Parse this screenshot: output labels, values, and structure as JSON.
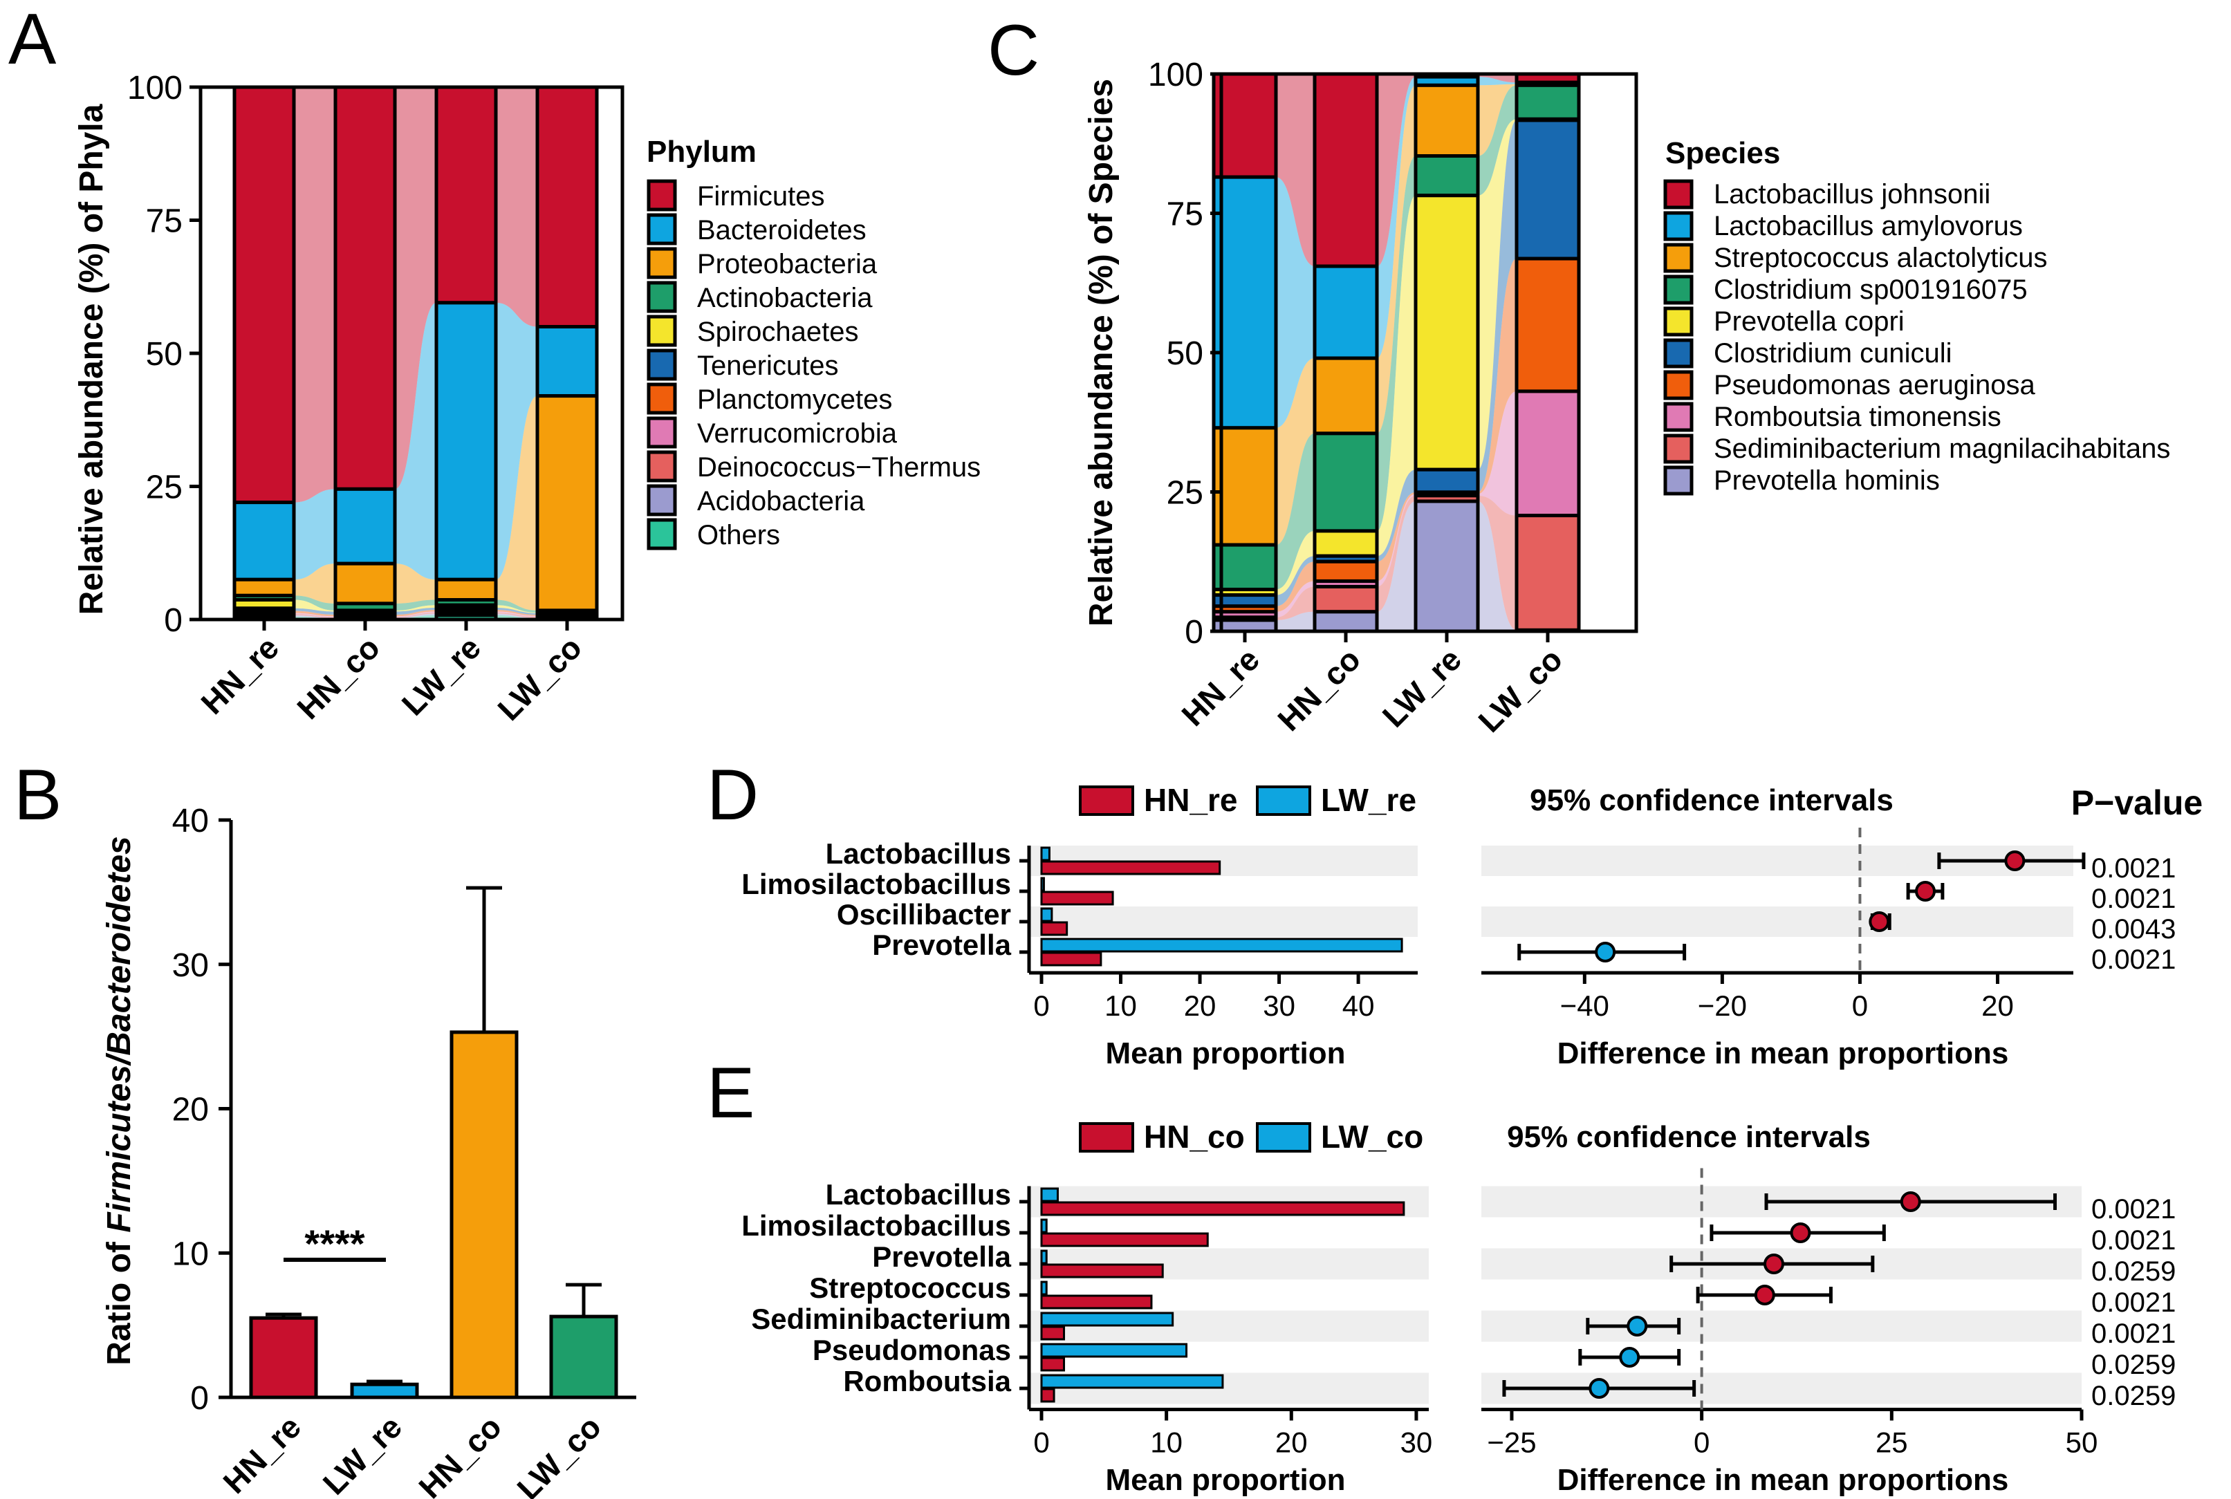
{
  "colors": {
    "Firmicutes": "#C8102E",
    "Bacteroidetes": "#0EA5E0",
    "Proteobacteria": "#F59E0B",
    "Actinobacteria": "#1E9E6A",
    "Spirochaetes": "#F4E52C",
    "Tenericutes": "#1869B0",
    "Planctomycetes": "#F05E0C",
    "Verrucomicrobia": "#E07AB4",
    "Deinococcus-Thermus": "#E5605E",
    "Acidobacteria": "#9B9BCF",
    "Others": "#2BC49A",
    "Lactobacillus johnsonii": "#C8102E",
    "Lactobacillus amylovorus": "#0EA5E0",
    "Streptococcus alactolyticus": "#F59E0B",
    "Clostridium sp001916075": "#1E9E6A",
    "Prevotella copri": "#F4E52C",
    "Clostridium cuniculi": "#1869B0",
    "Pseudomonas aeruginosa": "#F05E0C",
    "Romboutsia timonensis": "#E07AB4",
    "Sediminibacterium magnilacihabitans": "#E5605E",
    "Prevotella hominis": "#9B9BCF",
    "hn": "#C8102E",
    "lw": "#0EA5E0",
    "orange": "#F59E0B",
    "green": "#1E9E6A",
    "band": "#EEEEEE"
  },
  "panels": {
    "A": {
      "letter": "A",
      "ylabel": "Relative abundance (%) of  Phyla",
      "legend_title": "Phylum"
    },
    "B": {
      "letter": "B",
      "ylabel_prefix": "Ratio of ",
      "ylabel_italic": "Firmicutes/Bacteroidetes",
      "significance": "****"
    },
    "C": {
      "letter": "C",
      "ylabel": "Relative abundance (%) of Species",
      "legend_title": "Species"
    },
    "D": {
      "letter": "D",
      "ci_title": "95% confidence intervals",
      "pvalue_title": "P−value",
      "xlabel_left": "Mean proportion",
      "xlabel_right": "Difference in mean proportions"
    },
    "E": {
      "letter": "E",
      "ci_title": "95% confidence intervals",
      "xlabel_left": "Mean proportion",
      "xlabel_right": "Difference in mean proportions"
    }
  },
  "chart_data": [
    {
      "id": "A",
      "type": "bar",
      "stacked": true,
      "title": "",
      "xlabel": "",
      "ylabel": "Relative abundance (%) of  Phyla",
      "ylim": [
        0,
        100
      ],
      "yticks": [
        0,
        25,
        50,
        75,
        100
      ],
      "categories": [
        "HN_re",
        "HN_co",
        "LW_re",
        "LW_co"
      ],
      "legend_title": "Phylum",
      "legend": "right",
      "series": [
        {
          "name": "Firmicutes",
          "values": [
            78,
            75.5,
            40.5,
            45
          ]
        },
        {
          "name": "Bacteroidetes",
          "values": [
            14.5,
            14,
            52,
            13
          ]
        },
        {
          "name": "Proteobacteria",
          "values": [
            3,
            7.5,
            3.8,
            40.3
          ]
        },
        {
          "name": "Actinobacteria",
          "values": [
            0.8,
            1.3,
            1,
            0.4
          ]
        },
        {
          "name": "Spirochaetes",
          "values": [
            1.6,
            0.2,
            0.5,
            0.1
          ]
        },
        {
          "name": "Tenericutes",
          "values": [
            0.5,
            0.6,
            0.4,
            0.3
          ]
        },
        {
          "name": "Planctomycetes",
          "values": [
            0.4,
            0.3,
            0.3,
            0.2
          ]
        },
        {
          "name": "Verrucomicrobia",
          "values": [
            0.2,
            0.2,
            0.2,
            0.2
          ]
        },
        {
          "name": "Deinococcus−Thermus",
          "values": [
            0.2,
            0.1,
            0.2,
            0.2
          ]
        },
        {
          "name": "Acidobacteria",
          "values": [
            0.3,
            0.1,
            0.3,
            0.1
          ]
        },
        {
          "name": "Others",
          "values": [
            0.5,
            0.2,
            0.8,
            0.2
          ]
        }
      ]
    },
    {
      "id": "B",
      "type": "bar",
      "title": "",
      "xlabel": "",
      "ylabel": "Ratio of Firmicutes/Bacteroidetes",
      "ylim": [
        0,
        40
      ],
      "yticks": [
        0,
        10,
        20,
        30,
        40
      ],
      "categories": [
        "HN_re",
        "LW_re",
        "HN_co",
        "LW_co"
      ],
      "values": [
        5.5,
        0.9,
        25.3,
        5.6
      ],
      "errors": [
        0.25,
        0.2,
        10,
        2.2
      ],
      "annotation": {
        "text": "****",
        "between": [
          "HN_re",
          "LW_re"
        ]
      }
    },
    {
      "id": "C",
      "type": "bar",
      "stacked": true,
      "title": "",
      "xlabel": "",
      "ylabel": "Relative abundance (%) of Species",
      "ylim": [
        0,
        100
      ],
      "yticks": [
        0,
        25,
        50,
        75,
        100
      ],
      "categories": [
        "HN_re",
        "HN_co",
        "LW_re",
        "LW_co"
      ],
      "legend_title": "Species",
      "legend": "right",
      "series": [
        {
          "name": "Lactobacillus johnsonii",
          "values": [
            18.5,
            34.5,
            0.5,
            1.5
          ]
        },
        {
          "name": "Lactobacillus amylovorus",
          "values": [
            45,
            16.5,
            1.5,
            0.3
          ]
        },
        {
          "name": "Streptococcus alactolyticus",
          "values": [
            21,
            13.5,
            12.5,
            0.2
          ]
        },
        {
          "name": "Clostridium sp001916075",
          "values": [
            8,
            17.5,
            7,
            6
          ]
        },
        {
          "name": "Prevotella copri",
          "values": [
            1,
            4.5,
            48.5,
            0.2
          ]
        },
        {
          "name": "Clostridium cuniculi",
          "values": [
            2,
            1,
            4,
            24.5
          ]
        },
        {
          "name": "Pseudomonas aeruginosa",
          "values": [
            1,
            3.5,
            0.3,
            23.5
          ]
        },
        {
          "name": "Romboutsia timonensis",
          "values": [
            1,
            1,
            0.3,
            22
          ]
        },
        {
          "name": "Sediminibacterium magnilacihabitans",
          "values": [
            0.5,
            4.5,
            1,
            20.3
          ]
        },
        {
          "name": "Prevotella hominis",
          "values": [
            2,
            3.5,
            23,
            0.2
          ]
        }
      ]
    },
    {
      "id": "D",
      "type": "bar",
      "title": "95% confidence intervals",
      "legend": "top",
      "groups": [
        "HN_re",
        "LW_re"
      ],
      "features": [
        "Lactobacillus",
        "Limosilactobacillus",
        "Oscillibacter",
        "Prevotella"
      ],
      "mean_proportion": {
        "HN_re": [
          22.5,
          9,
          3.2,
          7.5
        ],
        "LW_re": [
          1,
          0.3,
          1.3,
          45.5
        ]
      },
      "left_xlim": [
        0,
        47.5
      ],
      "left_xticks": [
        0,
        10,
        20,
        30,
        40
      ],
      "left_xlabel": "Mean proportion",
      "difference": [
        22.5,
        9.5,
        2.8,
        -37
      ],
      "ci_low": [
        11.5,
        7,
        1.8,
        -49.5
      ],
      "ci_high": [
        32.5,
        12,
        4.3,
        -25.5
      ],
      "right_xlim": [
        -55,
        31
      ],
      "right_xticks": [
        -40,
        -20,
        0,
        20
      ],
      "right_xlabel": "Difference in mean proportions",
      "p_values": [
        "0.0021",
        "0.0021",
        "0.0043",
        "0.0021"
      ]
    },
    {
      "id": "E",
      "type": "bar",
      "title": "95% confidence intervals",
      "legend": "top",
      "groups": [
        "HN_co",
        "LW_co"
      ],
      "features": [
        "Lactobacillus",
        "Limosilactobacillus",
        "Prevotella",
        "Streptococcus",
        "Sediminibacterium",
        "Pseudomonas",
        "Romboutsia"
      ],
      "mean_proportion": {
        "HN_co": [
          29,
          13.3,
          9.7,
          8.8,
          1.8,
          1.8,
          1
        ],
        "LW_co": [
          1.3,
          0.4,
          0.4,
          0.4,
          10.5,
          11.6,
          14.5
        ]
      },
      "left_xlim": [
        0,
        31
      ],
      "left_xticks": [
        0,
        10,
        20,
        30
      ],
      "left_xlabel": "Mean proportion",
      "difference": [
        27.5,
        13,
        9.5,
        8.3,
        -8.5,
        -9.5,
        -13.5
      ],
      "ci_low": [
        8.5,
        1.3,
        -4,
        -0.5,
        -15,
        -16,
        -26
      ],
      "ci_high": [
        46.5,
        24,
        22.5,
        17,
        -3,
        -3,
        -1
      ],
      "right_xlim": [
        -29,
        50
      ],
      "right_xticks": [
        -25,
        0,
        25,
        50
      ],
      "right_xlabel": "Difference in mean proportions",
      "p_values": [
        "0.0021",
        "0.0021",
        "0.0259",
        "0.0021",
        "0.0021",
        "0.0259",
        "0.0259"
      ]
    }
  ]
}
